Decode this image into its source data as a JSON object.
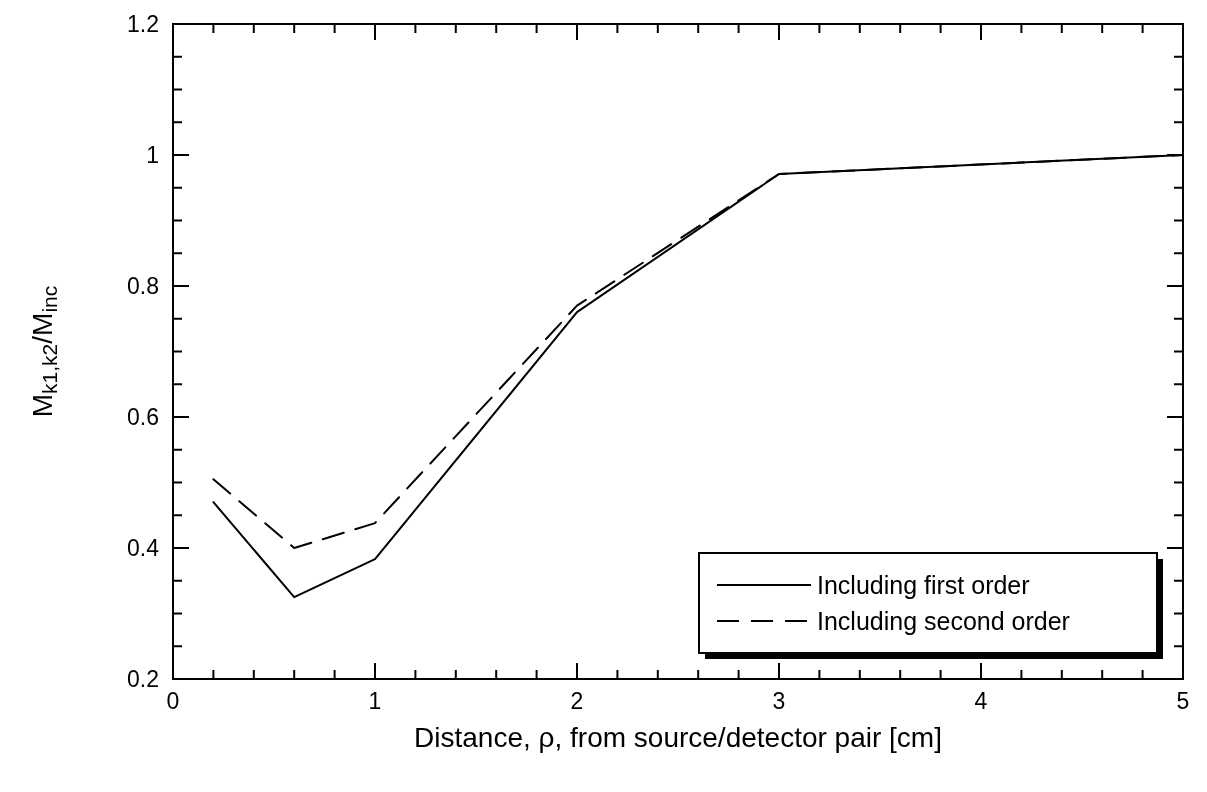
{
  "chart_data": {
    "type": "line",
    "xlabel": "Distance, ρ, from source/detector pair [cm]",
    "ylabel": "M$_{k1,k2}$/M$_{inc}$",
    "xlim": [
      0,
      5
    ],
    "ylim": [
      0.2,
      1.2
    ],
    "xticks": [
      0,
      {
        "value": 0.2,
        "label": null
      },
      {
        "value": 0.4,
        "label": null
      },
      {
        "value": 0.6,
        "label": null
      },
      {
        "value": 0.8,
        "label": null
      },
      1,
      {
        "value": 1.2,
        "label": null
      },
      {
        "value": 1.4,
        "label": null
      },
      {
        "value": 1.6,
        "label": null
      },
      {
        "value": 1.8,
        "label": null
      },
      2,
      {
        "value": 2.2,
        "label": null
      },
      {
        "value": 2.4,
        "label": null
      },
      {
        "value": 2.6,
        "label": null
      },
      {
        "value": 2.8,
        "label": null
      },
      3,
      {
        "value": 3.2,
        "label": null
      },
      {
        "value": 3.4,
        "label": null
      },
      {
        "value": 3.6,
        "label": null
      },
      {
        "value": 3.8,
        "label": null
      },
      4,
      {
        "value": 4.2,
        "label": null
      },
      {
        "value": 4.4,
        "label": null
      },
      {
        "value": 4.6,
        "label": null
      },
      {
        "value": 4.8,
        "label": null
      },
      5
    ],
    "yticks": [
      0.2,
      {
        "value": 0.25,
        "label": null
      },
      {
        "value": 0.3,
        "label": null
      },
      {
        "value": 0.35,
        "label": null
      },
      0.4,
      {
        "value": 0.45,
        "label": null
      },
      {
        "value": 0.5,
        "label": null
      },
      {
        "value": 0.55,
        "label": null
      },
      0.6,
      {
        "value": 0.65,
        "label": null
      },
      {
        "value": 0.7,
        "label": null
      },
      {
        "value": 0.75,
        "label": null
      },
      0.8,
      {
        "value": 0.85,
        "label": null
      },
      {
        "value": 0.9,
        "label": null
      },
      {
        "value": 0.95,
        "label": null
      },
      1,
      {
        "value": 1.05,
        "label": null
      },
      {
        "value": 1.1,
        "label": null
      },
      {
        "value": 1.15,
        "label": null
      },
      1.2
    ],
    "legend": "bottom right",
    "grid": false,
    "series": [
      {
        "name": "Including first order",
        "color": "#000000",
        "line_style": "solid",
        "x": [
          0.2,
          0.6,
          1,
          2,
          3,
          5
        ],
        "values": [
          0.47,
          0.325,
          0.383,
          0.76,
          0.971,
          1.0
        ]
      },
      {
        "name": "Including second order",
        "color": "#000000",
        "line_style": "dashed",
        "x": [
          0.2,
          0.6,
          1,
          2,
          3,
          5
        ],
        "values": [
          0.505,
          0.4,
          0.438,
          0.77,
          0.971,
          1.0
        ]
      }
    ]
  }
}
